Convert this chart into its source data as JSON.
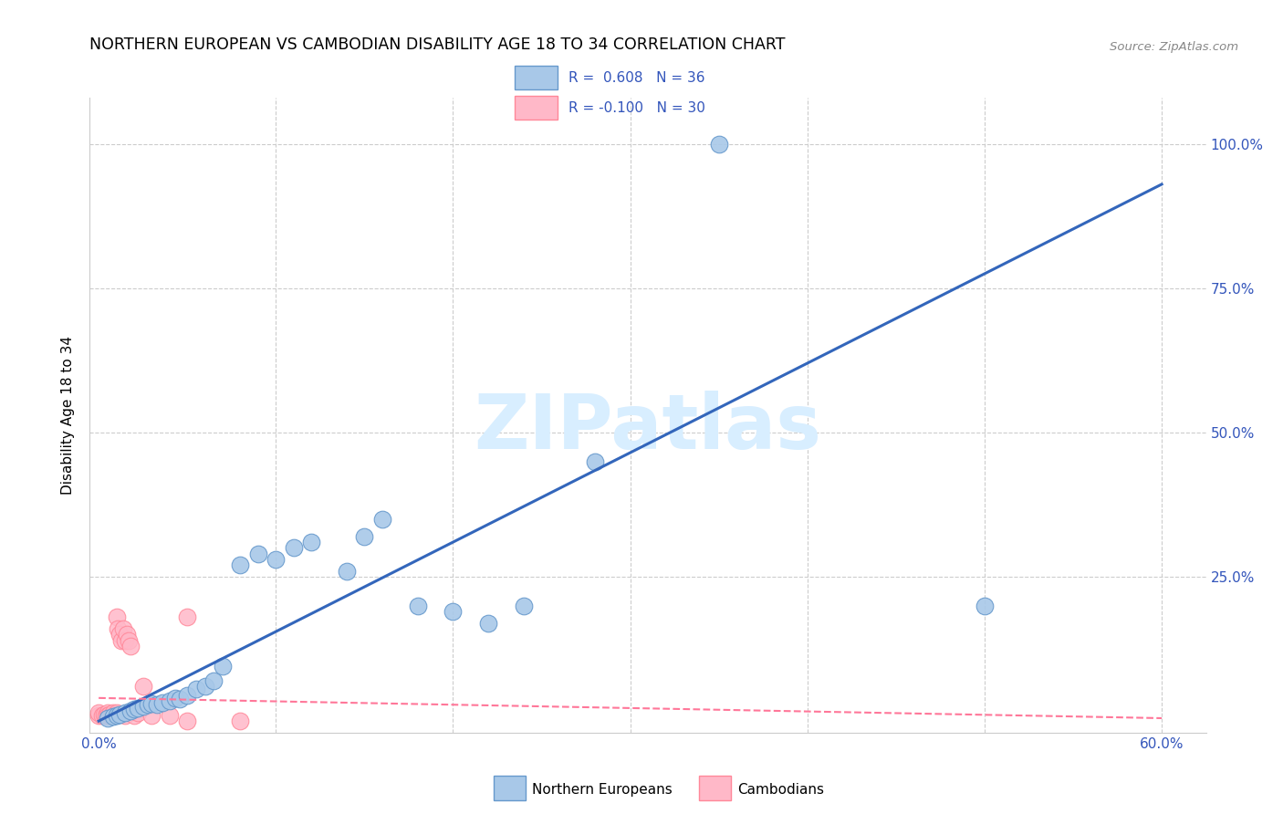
{
  "title": "NORTHERN EUROPEAN VS CAMBODIAN DISABILITY AGE 18 TO 34 CORRELATION CHART",
  "source": "Source: ZipAtlas.com",
  "ylabel": "Disability Age 18 to 34",
  "xlim": [
    -0.005,
    0.625
  ],
  "ylim": [
    -0.02,
    1.08
  ],
  "x_ticks": [
    0.0,
    0.1,
    0.2,
    0.3,
    0.4,
    0.5,
    0.6
  ],
  "x_tick_labels": [
    "0.0%",
    "",
    "",
    "",
    "",
    "",
    "60.0%"
  ],
  "y_ticks": [
    0.0,
    0.25,
    0.5,
    0.75,
    1.0
  ],
  "y_tick_labels_right": [
    "",
    "25.0%",
    "50.0%",
    "75.0%",
    "100.0%"
  ],
  "blue_marker_color": "#A8C8E8",
  "blue_edge_color": "#6699CC",
  "pink_marker_color": "#FFB8C8",
  "pink_edge_color": "#FF8899",
  "line_blue_color": "#3366BB",
  "line_pink_color": "#FF7799",
  "watermark": "ZIPatlas",
  "watermark_color": "#D8EEFF",
  "legend_R_blue": "0.608",
  "legend_N_blue": "36",
  "legend_R_pink": "-0.100",
  "legend_N_pink": "30",
  "legend_text_color": "#3355BB",
  "blue_x": [
    0.005,
    0.008,
    0.01,
    0.012,
    0.015,
    0.018,
    0.02,
    0.022,
    0.025,
    0.028,
    0.03,
    0.033,
    0.036,
    0.04,
    0.043,
    0.046,
    0.05,
    0.055,
    0.06,
    0.065,
    0.07,
    0.08,
    0.09,
    0.1,
    0.11,
    0.12,
    0.14,
    0.15,
    0.16,
    0.18,
    0.2,
    0.22,
    0.24,
    0.5,
    0.35,
    0.28
  ],
  "blue_y": [
    0.005,
    0.008,
    0.01,
    0.012,
    0.015,
    0.018,
    0.02,
    0.022,
    0.025,
    0.028,
    0.03,
    0.028,
    0.032,
    0.035,
    0.04,
    0.038,
    0.045,
    0.055,
    0.06,
    0.07,
    0.095,
    0.27,
    0.29,
    0.28,
    0.3,
    0.31,
    0.26,
    0.32,
    0.35,
    0.2,
    0.19,
    0.17,
    0.2,
    0.2,
    1.0,
    0.45
  ],
  "pink_x": [
    0.0,
    0.0,
    0.002,
    0.003,
    0.004,
    0.005,
    0.005,
    0.006,
    0.007,
    0.008,
    0.009,
    0.01,
    0.01,
    0.011,
    0.012,
    0.013,
    0.014,
    0.015,
    0.015,
    0.016,
    0.017,
    0.018,
    0.02,
    0.022,
    0.025,
    0.03,
    0.04,
    0.05,
    0.08,
    0.05
  ],
  "pink_y": [
    0.01,
    0.015,
    0.01,
    0.012,
    0.01,
    0.015,
    0.01,
    0.012,
    0.01,
    0.015,
    0.012,
    0.015,
    0.18,
    0.16,
    0.15,
    0.14,
    0.16,
    0.14,
    0.01,
    0.15,
    0.14,
    0.13,
    0.01,
    0.015,
    0.06,
    0.01,
    0.01,
    0.0,
    0.0,
    0.18
  ],
  "line_blue_x0": 0.0,
  "line_blue_x1": 0.6,
  "line_blue_y0": 0.0,
  "line_blue_y1": 0.93,
  "line_pink_x0": 0.0,
  "line_pink_x1": 0.6,
  "line_pink_y0": 0.04,
  "line_pink_y1": 0.005
}
